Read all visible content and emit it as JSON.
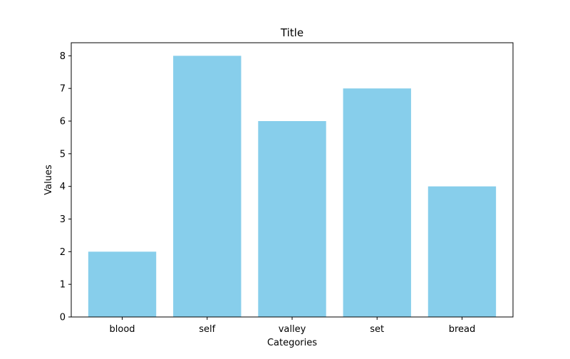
{
  "chart_data": {
    "type": "bar",
    "title": "Title",
    "xlabel": "Categories",
    "ylabel": "Values",
    "categories": [
      "blood",
      "self",
      "valley",
      "set",
      "bread"
    ],
    "values": [
      2,
      8,
      6,
      7,
      4
    ],
    "ylim": [
      0,
      8.4
    ],
    "yticks": [
      0,
      1,
      2,
      3,
      4,
      5,
      6,
      7,
      8
    ],
    "bar_color": "#87CEEB",
    "grid": false,
    "legend": "none"
  }
}
